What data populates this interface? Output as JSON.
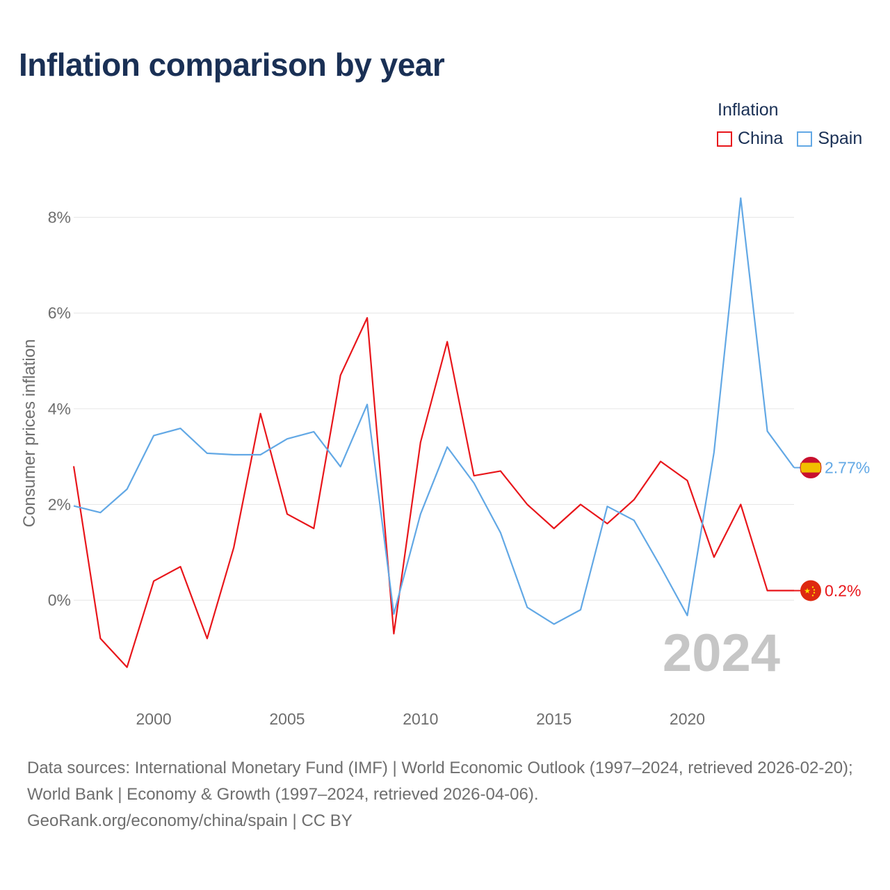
{
  "title": "Inflation comparison by year",
  "legend": {
    "title": "Inflation",
    "items": [
      {
        "label": "China",
        "color": "#e8161b"
      },
      {
        "label": "Spain",
        "color": "#62a8e5"
      }
    ]
  },
  "chart_data": {
    "type": "line",
    "ylabel": "Consumer prices inflation",
    "xlabel": "",
    "x": [
      1997,
      1998,
      1999,
      2000,
      2001,
      2002,
      2003,
      2004,
      2005,
      2006,
      2007,
      2008,
      2009,
      2010,
      2011,
      2012,
      2013,
      2014,
      2015,
      2016,
      2017,
      2018,
      2019,
      2020,
      2021,
      2022,
      2023,
      2024
    ],
    "xlim": [
      1997,
      2024
    ],
    "ylim": [
      -1.9,
      8.4
    ],
    "x_ticks": [
      2000,
      2005,
      2010,
      2015,
      2020
    ],
    "y_ticks": [
      {
        "value": 0,
        "label": "0%"
      },
      {
        "value": 2,
        "label": "2%"
      },
      {
        "value": 4,
        "label": "4%"
      },
      {
        "value": 6,
        "label": "6%"
      },
      {
        "value": 8,
        "label": "8%"
      }
    ],
    "grid": true,
    "series": [
      {
        "name": "China",
        "color": "#e8161b",
        "values": [
          2.8,
          -0.8,
          -1.4,
          0.4,
          0.7,
          -0.8,
          1.1,
          3.9,
          1.8,
          1.5,
          4.7,
          5.9,
          -0.7,
          3.3,
          5.4,
          2.6,
          2.7,
          2.0,
          1.5,
          2.0,
          1.6,
          2.1,
          2.9,
          2.5,
          0.9,
          2.0,
          0.2,
          0.2
        ],
        "end_label": "0.2%"
      },
      {
        "name": "Spain",
        "color": "#62a8e5",
        "values": [
          1.97,
          1.83,
          2.32,
          3.44,
          3.59,
          3.07,
          3.04,
          3.04,
          3.37,
          3.52,
          2.79,
          4.09,
          -0.29,
          1.8,
          3.2,
          2.45,
          1.41,
          -0.15,
          -0.5,
          -0.2,
          1.96,
          1.67,
          0.7,
          -0.32,
          3.09,
          8.4,
          3.53,
          2.77
        ],
        "end_label": "2.77%"
      }
    ],
    "annotation": "2024"
  },
  "sources": {
    "line1": "Data sources: International Monetary Fund (IMF) | World Economic Outlook (1997–2024, retrieved 2026-02-20); World Bank | Economy & Growth (1997–2024, retrieved 2026-04-06).",
    "line2": "GeoRank.org/economy/china/spain | CC BY"
  }
}
